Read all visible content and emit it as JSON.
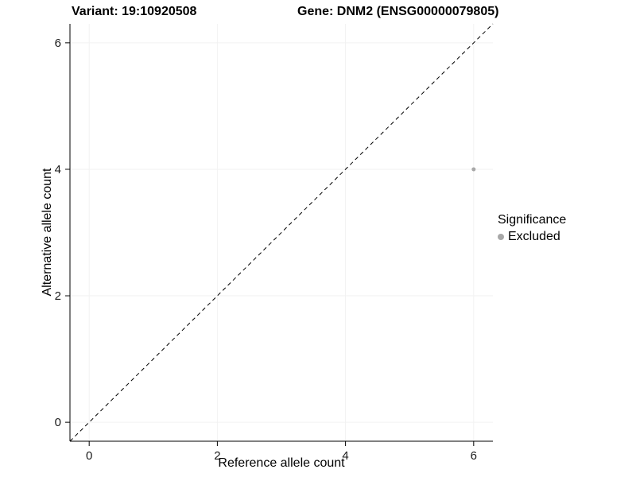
{
  "header": {
    "title_left": "Variant: 19:10920508",
    "title_right": "Gene: DNM2 (ENSG00000079805)"
  },
  "chart_data": {
    "type": "scatter",
    "title": "Variant: 19:10920508 — Gene: DNM2 (ENSG00000079805)",
    "xlabel": "Reference allele count",
    "ylabel": "Alternative allele count",
    "xlim": [
      -0.3,
      6.3
    ],
    "ylim": [
      -0.3,
      6.3
    ],
    "xticks": [
      0,
      2,
      4,
      6
    ],
    "yticks": [
      0,
      2,
      4,
      6
    ],
    "grid": true,
    "series": [
      {
        "name": "Excluded",
        "color": "#a8a8a8",
        "points": [
          {
            "x": 6,
            "y": 4
          }
        ]
      }
    ],
    "reference_line": {
      "type": "identity",
      "slope": 1,
      "intercept": 0,
      "style": "dashed",
      "color": "#000000"
    },
    "legend": {
      "title": "Significance",
      "position": "right",
      "entries": [
        {
          "label": "Excluded",
          "color": "#a8a8a8"
        }
      ]
    },
    "colors": {
      "grid": "#f2f2f2",
      "axis": "#000000",
      "tick_text": "#1a1a1a"
    }
  }
}
